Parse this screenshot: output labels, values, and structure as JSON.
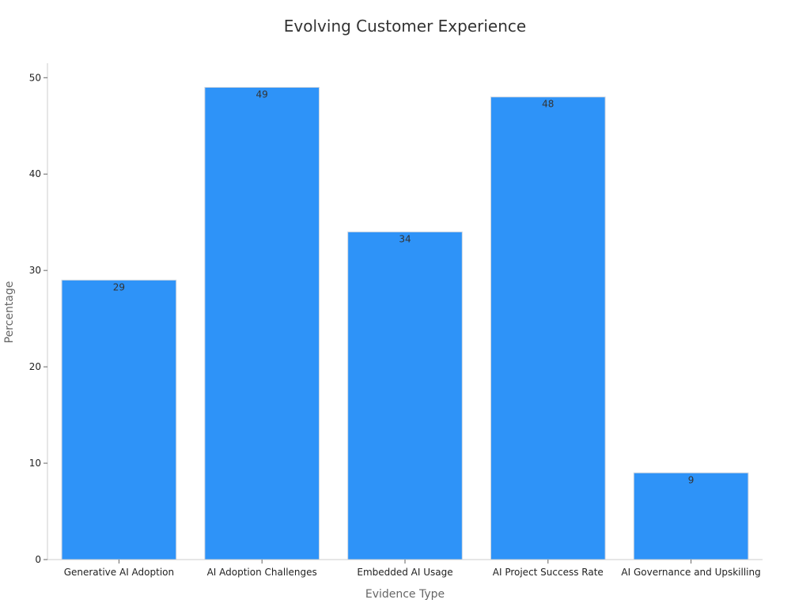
{
  "chart_data": {
    "type": "bar",
    "title": "Evolving Customer Experience",
    "xlabel": "Evidence Type",
    "ylabel": "Percentage",
    "categories": [
      "Generative AI Adoption",
      "AI Adoption Challenges",
      "Embedded AI Usage",
      "AI Project Success Rate",
      "AI Governance and Upskilling"
    ],
    "values": [
      29,
      49,
      34,
      48,
      9
    ],
    "yticks": [
      0,
      10,
      20,
      30,
      40,
      50
    ],
    "ylim": [
      0,
      51.5
    ],
    "grid": false,
    "legend": "none",
    "bar_color": "#2e93f8",
    "data_labels": true
  }
}
